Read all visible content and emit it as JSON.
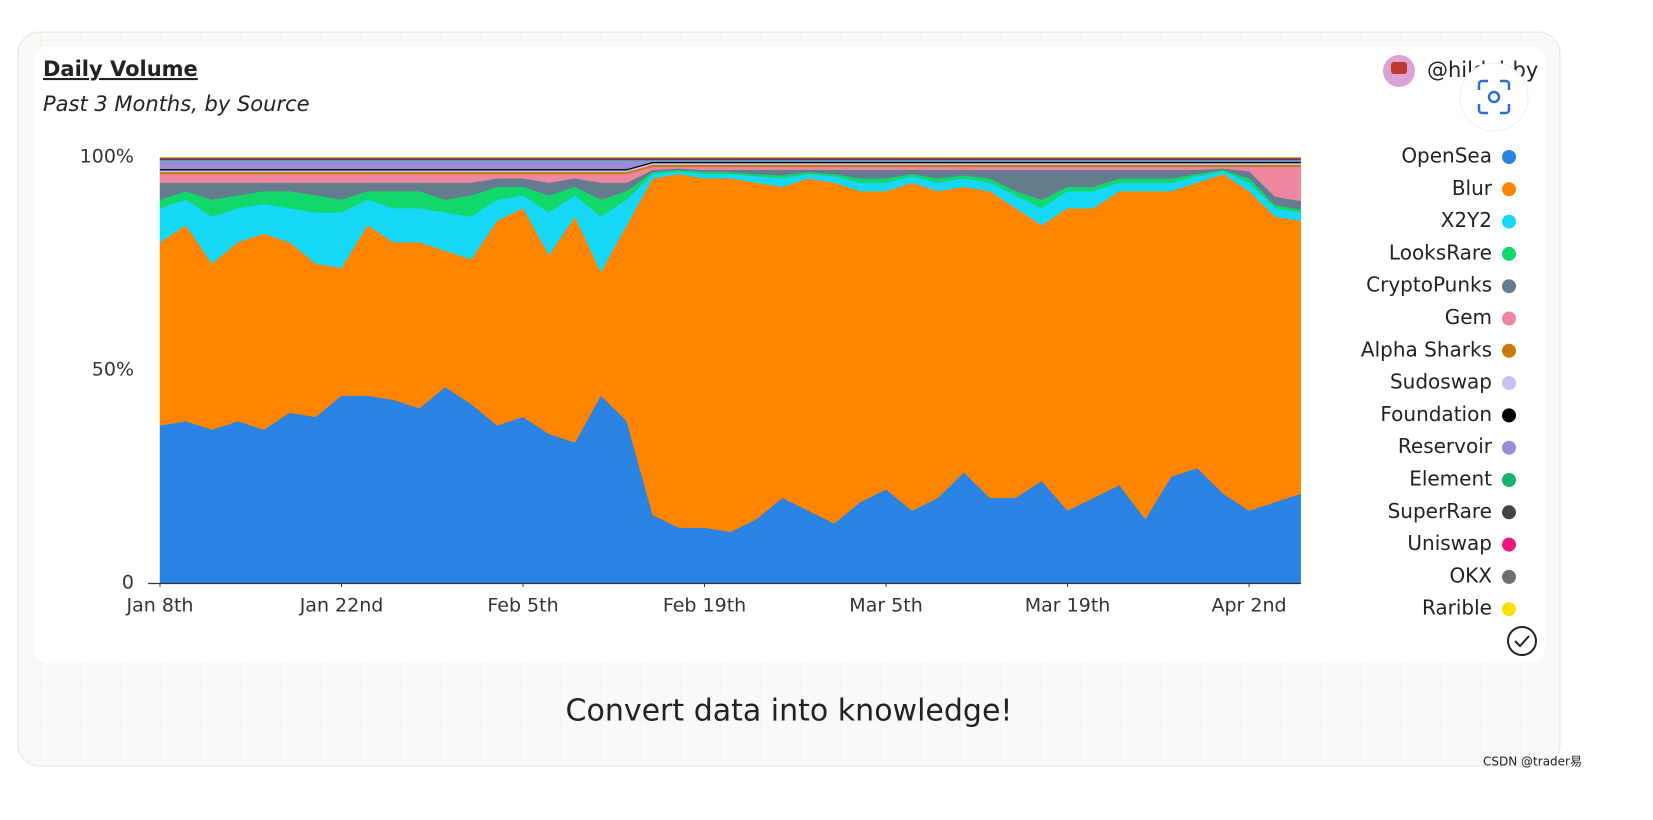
{
  "author": "@hildobby",
  "footer": "Convert data into knowledge!",
  "watermark": "CSDN @trader易",
  "chart_data": {
    "type": "stacked_area",
    "title": "Daily Volume",
    "subtitle": "Past 3 Months, by Source",
    "categories": [
      "Jan 8th",
      null,
      null,
      null,
      null,
      null,
      null,
      "Jan 22nd",
      null,
      null,
      null,
      null,
      null,
      null,
      "Feb 5th",
      null,
      null,
      null,
      null,
      null,
      null,
      "Feb 19th",
      null,
      null,
      null,
      null,
      null,
      null,
      "Mar 5th",
      null,
      null,
      null,
      null,
      null,
      null,
      "Mar 19th",
      null,
      null,
      null,
      null,
      null,
      null,
      "Apr 2nd",
      null,
      null
    ],
    "ylim": [
      0,
      100
    ],
    "yticks": [
      0,
      {
        "value": 50,
        "label": "50%"
      },
      {
        "value": 100,
        "label": "100%"
      }
    ],
    "series": [
      {
        "name": "OpenSea",
        "color": "#2a83e2",
        "values": [
          37,
          38,
          36,
          38,
          36,
          40,
          39,
          44,
          44,
          43,
          41,
          46,
          42,
          37,
          39,
          35,
          33,
          44,
          38,
          16,
          13,
          13,
          12,
          15,
          20,
          17,
          14,
          19,
          22,
          17,
          20,
          26,
          20,
          20,
          24,
          17,
          20,
          23,
          15,
          25,
          27,
          21,
          17,
          19,
          21
        ]
      },
      {
        "name": "Blur",
        "color": "#ff8400",
        "values": [
          43,
          46,
          39,
          42,
          46,
          40,
          36,
          30,
          40,
          37,
          39,
          32,
          34,
          48,
          49,
          42,
          53,
          29,
          46,
          79,
          83,
          82,
          83,
          79,
          73,
          78,
          80,
          73,
          70,
          77,
          72,
          67,
          72,
          68,
          60,
          71,
          68,
          69,
          77,
          67,
          67,
          75,
          75,
          67,
          64
        ]
      },
      {
        "name": "X2Y2",
        "color": "#16d7f5",
        "values": [
          8,
          6,
          11,
          8,
          7,
          8,
          12,
          13,
          6,
          8,
          8,
          9,
          10,
          5,
          3,
          10,
          5,
          13,
          6,
          1,
          0.7,
          1,
          1,
          1.5,
          2,
          1,
          1.5,
          2,
          2,
          1.5,
          2,
          2,
          2,
          3,
          4,
          4,
          4,
          2,
          2,
          2,
          1.5,
          0.7,
          2,
          2,
          2
        ]
      },
      {
        "name": "LooksRare",
        "color": "#12d86c",
        "values": [
          2,
          2,
          4,
          3,
          3,
          4,
          4,
          3,
          2,
          4,
          4,
          3,
          5,
          3,
          2,
          4,
          2,
          4,
          2,
          0.5,
          0.3,
          0.5,
          0.5,
          0.5,
          0.7,
          0.5,
          0.5,
          1,
          1,
          0.5,
          1,
          0.7,
          1,
          1,
          2,
          1,
          1,
          1,
          1,
          1,
          0.5,
          0.3,
          1,
          0.7,
          0.7
        ]
      },
      {
        "name": "CryptoPunks",
        "color": "#637d8f",
        "values": [
          4,
          2,
          4,
          3,
          2,
          2,
          3,
          4,
          2,
          2,
          2,
          4,
          3,
          2,
          2,
          3,
          2,
          4,
          2,
          0.5,
          0.3,
          0.5,
          0.5,
          1,
          1.3,
          0.5,
          1,
          2,
          2,
          1,
          2,
          1.3,
          2,
          5,
          7,
          4,
          4,
          2,
          2,
          2,
          1,
          0.3,
          1.7,
          2,
          2
        ]
      },
      {
        "name": "Gem",
        "color": "#ee86a0",
        "values": [
          2,
          2,
          2,
          2,
          2,
          2,
          2,
          2,
          2,
          2,
          2,
          2,
          2,
          1,
          1,
          2,
          1,
          2,
          2,
          0.7,
          0.4,
          0.7,
          0.7,
          0.7,
          0.7,
          0.7,
          0.7,
          0.7,
          0.7,
          0.7,
          0.7,
          0.7,
          0.7,
          0.7,
          0.7,
          0.7,
          0.7,
          0.7,
          0.7,
          0.7,
          0.7,
          0.4,
          1,
          7,
          8
        ]
      },
      {
        "name": "Alpha Sharks",
        "color": "#c87a0b",
        "values": [
          0.5,
          0.5,
          0.5,
          0.5,
          0.5,
          0.5,
          0.5,
          0.5,
          0.5,
          0.5,
          0.5,
          0.5,
          0.5,
          0.5,
          0.5,
          0.5,
          0.5,
          0.5,
          0.5,
          0.5,
          0.5,
          0.5,
          0.5,
          0.5,
          0.5,
          0.5,
          0.5,
          0.5,
          0.5,
          0.5,
          0.5,
          0.5,
          0.5,
          0.5,
          0.5,
          0.5,
          0.5,
          0.5,
          0.5,
          0.5,
          0.5,
          0.5,
          0.5,
          0.5,
          0.5
        ]
      },
      {
        "name": "Sudoswap",
        "color": "#c5c0f5",
        "values": [
          0.4,
          0.4,
          0.4,
          0.4,
          0.4,
          0.4,
          0.4,
          0.4,
          0.4,
          0.4,
          0.4,
          0.4,
          0.4,
          0.4,
          0.4,
          0.4,
          0.4,
          0.4,
          0.4,
          0.4,
          0.4,
          0.4,
          0.4,
          0.4,
          0.4,
          0.4,
          0.4,
          0.4,
          0.4,
          0.4,
          0.4,
          0.4,
          0.4,
          0.4,
          0.4,
          0.4,
          0.4,
          0.4,
          0.4,
          0.4,
          0.4,
          0.4,
          0.4,
          0.4,
          0.4
        ]
      },
      {
        "name": "Foundation",
        "color": "#000000",
        "values": [
          0.3,
          0.3,
          0.3,
          0.3,
          0.3,
          0.3,
          0.3,
          0.3,
          0.3,
          0.3,
          0.3,
          0.3,
          0.3,
          0.3,
          0.3,
          0.3,
          0.3,
          0.3,
          0.3,
          0.3,
          0.3,
          0.3,
          0.3,
          0.3,
          0.3,
          0.3,
          0.3,
          0.3,
          0.3,
          0.3,
          0.3,
          0.3,
          0.3,
          0.3,
          0.3,
          0.3,
          0.3,
          0.3,
          0.3,
          0.3,
          0.3,
          0.3,
          0.3,
          0.3,
          0.3
        ]
      },
      {
        "name": "Reservoir",
        "color": "#9b8ad8",
        "values": [
          2,
          2,
          2,
          2,
          2,
          2,
          2,
          2,
          2,
          2,
          2,
          2,
          2,
          2,
          2,
          2,
          2,
          2,
          2,
          0.3,
          0.3,
          0.3,
          0.3,
          0.3,
          0.3,
          0.3,
          0.3,
          0.3,
          0.3,
          0.3,
          0.3,
          0.3,
          0.3,
          0.3,
          0.3,
          0.3,
          0.3,
          0.3,
          0.3,
          0.3,
          0.3,
          0.3,
          0.3,
          0.3,
          0.3
        ]
      },
      {
        "name": "Element",
        "color": "#12b36a",
        "values": [
          0.2,
          0.2,
          0.2,
          0.2,
          0.2,
          0.2,
          0.2,
          0.2,
          0.2,
          0.2,
          0.2,
          0.2,
          0.2,
          0.2,
          0.2,
          0.2,
          0.2,
          0.2,
          0.2,
          0.2,
          0.2,
          0.2,
          0.2,
          0.2,
          0.2,
          0.2,
          0.2,
          0.2,
          0.2,
          0.2,
          0.2,
          0.2,
          0.2,
          0.2,
          0.2,
          0.2,
          0.2,
          0.2,
          0.2,
          0.2,
          0.2,
          0.2,
          0.2,
          0.2,
          0.2
        ]
      },
      {
        "name": "SuperRare",
        "color": "#444444",
        "values": [
          0.2,
          0.2,
          0.2,
          0.2,
          0.2,
          0.2,
          0.2,
          0.2,
          0.2,
          0.2,
          0.2,
          0.2,
          0.2,
          0.2,
          0.2,
          0.2,
          0.2,
          0.2,
          0.2,
          0.2,
          0.2,
          0.2,
          0.2,
          0.2,
          0.2,
          0.2,
          0.2,
          0.2,
          0.2,
          0.2,
          0.2,
          0.2,
          0.2,
          0.2,
          0.2,
          0.2,
          0.2,
          0.2,
          0.2,
          0.2,
          0.2,
          0.2,
          0.2,
          0.2,
          0.2
        ]
      },
      {
        "name": "Uniswap",
        "color": "#f0177c",
        "values": [
          0.2,
          0.2,
          0.2,
          0.2,
          0.2,
          0.2,
          0.2,
          0.2,
          0.2,
          0.2,
          0.2,
          0.2,
          0.2,
          0.2,
          0.2,
          0.2,
          0.2,
          0.2,
          0.2,
          0.2,
          0.2,
          0.2,
          0.2,
          0.2,
          0.2,
          0.2,
          0.2,
          0.2,
          0.2,
          0.2,
          0.2,
          0.2,
          0.2,
          0.2,
          0.2,
          0.2,
          0.2,
          0.2,
          0.2,
          0.2,
          0.2,
          0.2,
          0.2,
          0.2,
          0.2
        ]
      },
      {
        "name": "OKX",
        "color": "#6e6e6e",
        "values": [
          0.1,
          0.1,
          0.1,
          0.1,
          0.1,
          0.1,
          0.1,
          0.1,
          0.1,
          0.1,
          0.1,
          0.1,
          0.1,
          0.1,
          0.1,
          0.1,
          0.1,
          0.1,
          0.1,
          0.1,
          0.1,
          0.1,
          0.1,
          0.1,
          0.1,
          0.1,
          0.1,
          0.1,
          0.1,
          0.1,
          0.1,
          0.1,
          0.1,
          0.1,
          0.1,
          0.1,
          0.1,
          0.1,
          0.1,
          0.1,
          0.1,
          0.1,
          0.1,
          0.1,
          0.1
        ]
      },
      {
        "name": "Rarible",
        "color": "#fde000",
        "values": [
          0.1,
          0.1,
          0.1,
          0.1,
          0.1,
          0.1,
          0.1,
          0.1,
          0.1,
          0.1,
          0.1,
          0.1,
          0.1,
          0.1,
          0.1,
          0.1,
          0.1,
          0.1,
          0.1,
          0.1,
          0.1,
          0.1,
          0.1,
          0.1,
          0.1,
          0.1,
          0.1,
          0.1,
          0.1,
          0.1,
          0.1,
          0.1,
          0.1,
          0.1,
          0.1,
          0.1,
          0.1,
          0.1,
          0.1,
          0.1,
          0.1,
          0.1,
          0.1,
          0.1,
          0.1
        ]
      }
    ]
  }
}
